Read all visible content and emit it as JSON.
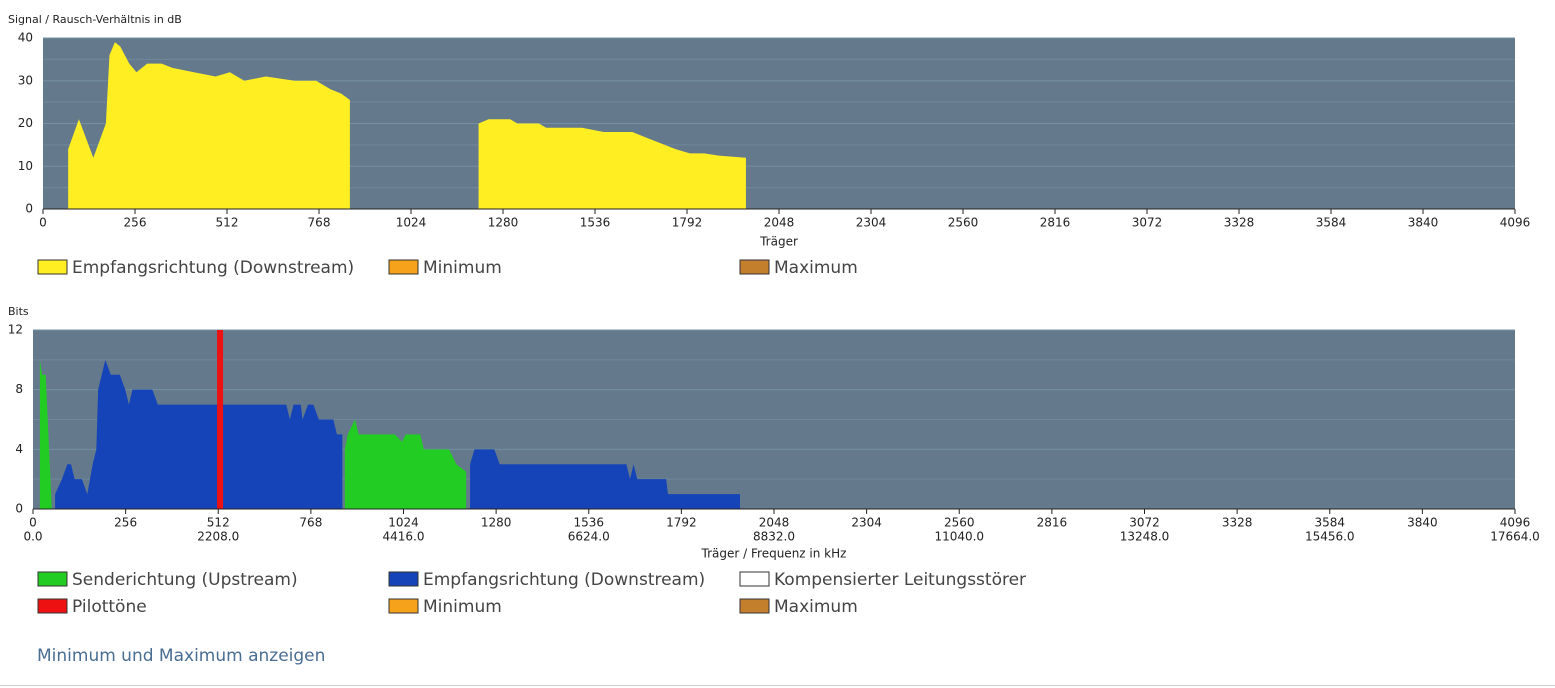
{
  "chart_data": [
    {
      "type": "area",
      "ylabel": "Signal / Rausch-Verhältnis in dB",
      "xlabel": "Träger",
      "xlim": [
        0,
        4096
      ],
      "xticks": [
        0,
        256,
        512,
        768,
        1024,
        1280,
        1536,
        1792,
        2048,
        2304,
        2560,
        2816,
        3072,
        3328,
        3584,
        3840,
        4096
      ],
      "ylim": [
        0,
        40
      ],
      "yticks": [
        0,
        10,
        20,
        30,
        40
      ],
      "grid": true,
      "series": [
        {
          "name": "Empfangsrichtung (Downstream)",
          "color": "#ffee22",
          "x": [
            70,
            100,
            140,
            175,
            185,
            200,
            215,
            240,
            260,
            290,
            330,
            360,
            420,
            480,
            520,
            560,
            620,
            700,
            760,
            800,
            830,
            854,
            1000,
            1212,
            1240,
            1300,
            1320,
            1380,
            1400,
            1500,
            1560,
            1640,
            1700,
            1760,
            1800,
            1840,
            1880,
            1956
          ],
          "values": [
            14,
            21,
            12,
            20,
            36,
            39,
            38,
            34,
            32,
            34,
            34,
            33,
            32,
            31,
            32,
            30,
            31,
            30,
            30,
            28,
            27,
            25.5,
            null,
            20,
            21,
            21,
            20,
            20,
            19,
            19,
            18,
            18,
            16,
            14,
            13,
            13,
            12.5,
            12
          ]
        },
        {
          "name": "Minimum",
          "color": "#f7a21b",
          "x": [],
          "values": []
        },
        {
          "name": "Maximum",
          "color": "#c47f2c",
          "x": [],
          "values": []
        }
      ]
    },
    {
      "type": "area",
      "ylabel": "Bits",
      "xlabel": "Träger / Frequenz in kHz",
      "xlim": [
        0,
        4096
      ],
      "xticks": [
        0,
        256,
        512,
        768,
        1024,
        1280,
        1536,
        1792,
        2048,
        2304,
        2560,
        2816,
        3072,
        3328,
        3584,
        3840,
        4096
      ],
      "x2ticks": [
        {
          "value": 0,
          "label": "0.0"
        },
        {
          "value": 512,
          "label": "2208.0"
        },
        {
          "value": 1024,
          "label": "4416.0"
        },
        {
          "value": 1536,
          "label": "6624.0"
        },
        {
          "value": 2048,
          "label": "8832.0"
        },
        {
          "value": 2560,
          "label": "11040.0"
        },
        {
          "value": 3072,
          "label": "13248.0"
        },
        {
          "value": 3584,
          "label": "15456.0"
        },
        {
          "value": 4096,
          "label": "17664.0"
        }
      ],
      "ylim": [
        0,
        12
      ],
      "yticks": [
        0,
        4,
        8,
        12
      ],
      "grid": true,
      "series": [
        {
          "name": "Senderichtung (Upstream)",
          "color": "#22cc22",
          "x": [
            19,
            25,
            35,
            52,
            500,
            862,
            870,
            890,
            900,
            1000,
            1020,
            1030,
            1070,
            1080,
            1150,
            1170,
            1197
          ],
          "values": [
            10,
            9,
            9,
            0,
            null,
            4,
            5,
            6,
            5,
            5,
            4.5,
            5,
            5,
            4,
            4,
            3,
            2.5
          ]
        },
        {
          "name": "Empfangsrichtung (Downstream)",
          "color": "#1544b8",
          "x": [
            61,
            80,
            95,
            105,
            115,
            135,
            150,
            165,
            175,
            180,
            190,
            200,
            215,
            240,
            255,
            265,
            275,
            330,
            345,
            500,
            700,
            710,
            720,
            740,
            745,
            760,
            775,
            790,
            830,
            840,
            855,
            1000,
            1208,
            1220,
            1275,
            1290,
            1640,
            1650,
            1660,
            1670,
            1750,
            1755,
            1954
          ],
          "values": [
            1,
            2,
            3,
            3,
            2,
            2,
            1,
            3,
            4,
            8,
            9,
            10,
            9,
            9,
            8,
            7,
            8,
            8,
            7,
            7,
            7,
            6,
            7,
            7,
            6,
            7,
            7,
            6,
            6,
            5,
            5,
            null,
            3,
            4,
            4,
            3,
            3,
            2,
            3,
            2,
            2,
            1,
            1
          ]
        },
        {
          "name": "Kompensierter Leitungsstörer",
          "color": "#ffffff",
          "x": [],
          "values": []
        },
        {
          "name": "Pilottöne",
          "color": "#ee1111",
          "type": "bar",
          "x": [
            517
          ],
          "values": [
            12
          ]
        },
        {
          "name": "Minimum",
          "color": "#f7a21b",
          "x": [],
          "values": []
        },
        {
          "name": "Maximum",
          "color": "#c47f2c",
          "x": [],
          "values": []
        }
      ]
    }
  ],
  "link": "Minimum und Maximum anzeigen"
}
